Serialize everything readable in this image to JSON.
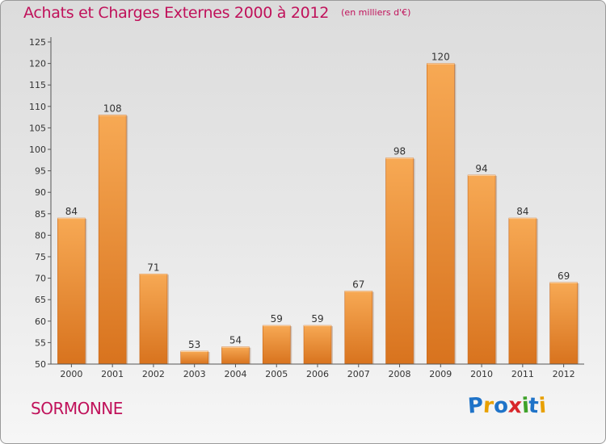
{
  "header": {
    "title": "Achats et Charges Externes 2000 à 2012",
    "subtitle": "(en milliers d'€)"
  },
  "footer": {
    "commune": "SORMONNE",
    "brand": "Proxiti"
  },
  "colors": {
    "accent": "#c0115a",
    "bar_light": "#f7a954",
    "bar_dark": "#d8731e"
  },
  "chart_data": {
    "type": "bar",
    "title": "Achats et Charges Externes 2000 à 2012",
    "subtitle": "(en milliers d'€)",
    "xlabel": "",
    "ylabel": "",
    "categories": [
      "2000",
      "2001",
      "2002",
      "2003",
      "2004",
      "2005",
      "2006",
      "2007",
      "2008",
      "2009",
      "2010",
      "2011",
      "2012"
    ],
    "values": [
      84,
      108,
      71,
      53,
      54,
      59,
      59,
      67,
      98,
      120,
      94,
      84,
      69
    ],
    "ylim": [
      50,
      125
    ],
    "yticks": [
      50,
      55,
      60,
      65,
      70,
      75,
      80,
      85,
      90,
      95,
      100,
      105,
      110,
      115,
      120,
      125
    ],
    "grid": false,
    "legend": "none"
  }
}
